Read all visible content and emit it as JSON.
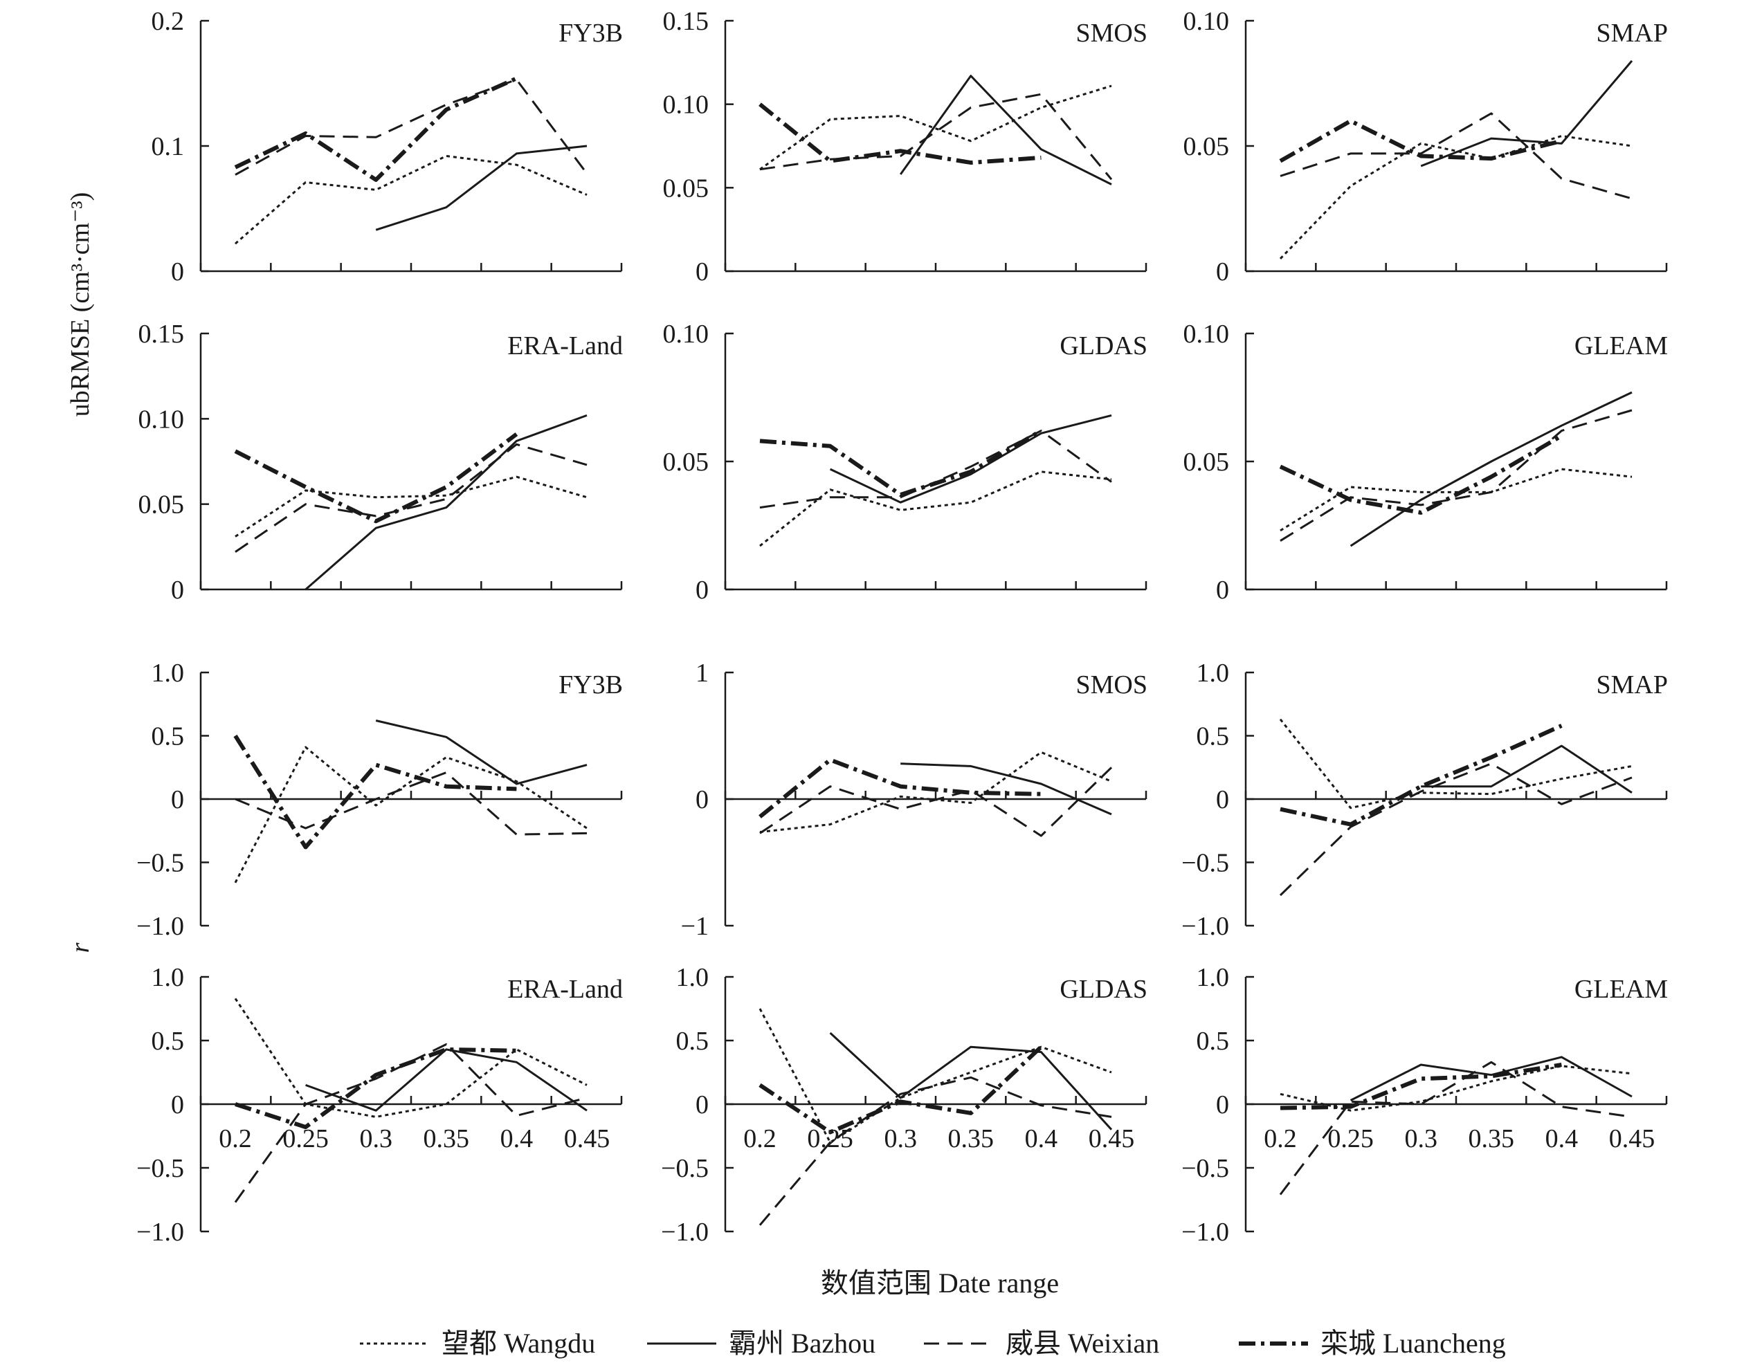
{
  "figure": {
    "ylabel_top": "ubRMSE (cm³·cm⁻³)",
    "ylabel_bottom": "r",
    "xlabel": "数值范围 Date range"
  },
  "legend": [
    {
      "label": "望都 Wangdu",
      "style": "dotted"
    },
    {
      "label": "霸州 Bazhou",
      "style": "solid"
    },
    {
      "label": "威县 Weixian",
      "style": "dashed"
    },
    {
      "label": "栾城 Luancheng",
      "style": "dashdot"
    }
  ],
  "chart_data": [
    {
      "type": "line",
      "title": "FY3B",
      "ylim": [
        0,
        0.2
      ],
      "yticks": [
        "0",
        "0.1",
        "0.2"
      ],
      "x": [
        0.2,
        0.25,
        0.3,
        0.35,
        0.4,
        0.45
      ],
      "xticks": [],
      "series": [
        {
          "name": "望都 Wangdu",
          "values": [
            0.022,
            0.071,
            0.065,
            0.092,
            0.085,
            0.061
          ]
        },
        {
          "name": "霸州 Bazhou",
          "values": [
            null,
            null,
            0.033,
            0.051,
            0.094,
            0.1
          ]
        },
        {
          "name": "威县 Weixian",
          "values": [
            0.077,
            0.108,
            0.107,
            0.133,
            0.153,
            0.078
          ]
        },
        {
          "name": "栾城 Luancheng",
          "values": [
            0.083,
            0.11,
            0.073,
            0.129,
            0.154,
            null
          ]
        }
      ]
    },
    {
      "type": "line",
      "title": "SMOS",
      "ylim": [
        0,
        0.15
      ],
      "yticks": [
        "0",
        "0.05",
        "0.10",
        "0.15"
      ],
      "x": [
        0.2,
        0.25,
        0.3,
        0.35,
        0.4,
        0.45
      ],
      "xticks": [],
      "series": [
        {
          "name": "望都 Wangdu",
          "values": [
            0.061,
            0.091,
            0.093,
            0.078,
            0.098,
            0.111
          ]
        },
        {
          "name": "霸州 Bazhou",
          "values": [
            null,
            null,
            0.058,
            0.117,
            0.073,
            0.052
          ]
        },
        {
          "name": "威县 Weixian",
          "values": [
            0.061,
            0.067,
            0.069,
            0.098,
            0.106,
            0.055
          ]
        },
        {
          "name": "栾城 Luancheng",
          "values": [
            0.1,
            0.066,
            0.072,
            0.065,
            0.068,
            null
          ]
        }
      ]
    },
    {
      "type": "line",
      "title": "SMAP",
      "ylim": [
        0,
        0.1
      ],
      "yticks": [
        "0",
        "0.05",
        "0.10"
      ],
      "x": [
        0.2,
        0.25,
        0.3,
        0.35,
        0.4,
        0.45
      ],
      "xticks": [],
      "series": [
        {
          "name": "望都 Wangdu",
          "values": [
            0.005,
            0.034,
            0.051,
            0.045,
            0.054,
            0.05
          ]
        },
        {
          "name": "霸州 Bazhou",
          "values": [
            null,
            null,
            0.042,
            0.053,
            0.051,
            0.084
          ]
        },
        {
          "name": "威县 Weixian",
          "values": [
            0.038,
            0.047,
            0.047,
            0.063,
            0.037,
            0.029
          ]
        },
        {
          "name": "栾城 Luancheng",
          "values": [
            0.044,
            0.06,
            0.046,
            0.045,
            0.052,
            null
          ]
        }
      ]
    },
    {
      "type": "line",
      "title": "ERA-Land",
      "ylim": [
        0,
        0.15
      ],
      "yticks": [
        "0",
        "0.05",
        "0.10",
        "0.15"
      ],
      "x": [
        0.2,
        0.25,
        0.3,
        0.35,
        0.4,
        0.45
      ],
      "xticks": [],
      "series": [
        {
          "name": "望都 Wangdu",
          "values": [
            0.031,
            0.058,
            0.054,
            0.055,
            0.066,
            0.054
          ]
        },
        {
          "name": "霸州 Bazhou",
          "values": [
            null,
            0.0,
            0.036,
            0.048,
            0.087,
            0.102
          ]
        },
        {
          "name": "威县 Weixian",
          "values": [
            0.022,
            0.05,
            0.043,
            0.053,
            0.085,
            0.073
          ]
        },
        {
          "name": "栾城 Luancheng",
          "values": [
            0.081,
            0.06,
            0.04,
            0.06,
            0.091,
            null
          ]
        }
      ]
    },
    {
      "type": "line",
      "title": "GLDAS",
      "ylim": [
        0,
        0.1
      ],
      "yticks": [
        "0",
        "0.05",
        "0.10"
      ],
      "x": [
        0.2,
        0.25,
        0.3,
        0.35,
        0.4,
        0.45
      ],
      "xticks": [],
      "series": [
        {
          "name": "望都 Wangdu",
          "values": [
            0.017,
            0.039,
            0.031,
            0.034,
            0.046,
            0.043
          ]
        },
        {
          "name": "霸州 Bazhou",
          "values": [
            null,
            0.047,
            0.034,
            0.045,
            0.061,
            0.068
          ]
        },
        {
          "name": "威县 Weixian",
          "values": [
            0.032,
            0.036,
            0.036,
            0.048,
            0.062,
            0.042
          ]
        },
        {
          "name": "栾城 Luancheng",
          "values": [
            0.058,
            0.056,
            0.037,
            0.046,
            0.062,
            null
          ]
        }
      ]
    },
    {
      "type": "line",
      "title": "GLEAM",
      "ylim": [
        0,
        0.1
      ],
      "yticks": [
        "0",
        "0.05",
        "0.10"
      ],
      "x": [
        0.2,
        0.25,
        0.3,
        0.35,
        0.4,
        0.45
      ],
      "xticks": [],
      "series": [
        {
          "name": "望都 Wangdu",
          "values": [
            0.023,
            0.04,
            0.038,
            0.038,
            0.047,
            0.044
          ]
        },
        {
          "name": "霸州 Bazhou",
          "values": [
            null,
            0.017,
            0.035,
            0.05,
            0.064,
            0.077
          ]
        },
        {
          "name": "威县 Weixian",
          "values": [
            0.019,
            0.036,
            0.033,
            0.038,
            0.062,
            0.07
          ]
        },
        {
          "name": "栾城 Luancheng",
          "values": [
            0.048,
            0.035,
            0.03,
            0.044,
            0.06,
            null
          ]
        }
      ]
    },
    {
      "type": "line",
      "title": "FY3B",
      "ylim": [
        -1.0,
        1.0
      ],
      "yticks": [
        "−1.0",
        "−0.5",
        "0",
        "0.5",
        "1.0"
      ],
      "x": [
        0.2,
        0.25,
        0.3,
        0.35,
        0.4,
        0.45
      ],
      "xticks": [],
      "series": [
        {
          "name": "望都 Wangdu",
          "values": [
            -0.66,
            0.41,
            -0.05,
            0.33,
            0.14,
            -0.23
          ]
        },
        {
          "name": "霸州 Bazhou",
          "values": [
            null,
            null,
            0.62,
            0.49,
            0.12,
            0.27
          ]
        },
        {
          "name": "威县 Weixian",
          "values": [
            0.0,
            -0.23,
            0.0,
            0.21,
            -0.28,
            -0.27
          ]
        },
        {
          "name": "栾城 Luancheng",
          "values": [
            0.5,
            -0.38,
            0.27,
            0.1,
            0.08,
            null
          ]
        }
      ]
    },
    {
      "type": "line",
      "title": "SMOS",
      "ylim": [
        -1,
        1
      ],
      "yticks": [
        "−1",
        "0",
        "1"
      ],
      "x": [
        0.2,
        0.25,
        0.3,
        0.35,
        0.4,
        0.45
      ],
      "xticks": [],
      "series": [
        {
          "name": "望都 Wangdu",
          "values": [
            -0.26,
            -0.2,
            0.02,
            -0.03,
            0.37,
            0.14
          ]
        },
        {
          "name": "霸州 Bazhou",
          "values": [
            null,
            null,
            0.28,
            0.26,
            0.12,
            -0.12
          ]
        },
        {
          "name": "威县 Weixian",
          "values": [
            -0.27,
            0.1,
            -0.08,
            0.07,
            -0.29,
            0.25
          ]
        },
        {
          "name": "栾城 Luancheng",
          "values": [
            -0.14,
            0.31,
            0.1,
            0.05,
            0.04,
            null
          ]
        }
      ]
    },
    {
      "type": "line",
      "title": "SMAP",
      "ylim": [
        -1.0,
        1.0
      ],
      "yticks": [
        "−1.0",
        "−0.5",
        "0",
        "0.5",
        "1.0"
      ],
      "x": [
        0.2,
        0.25,
        0.3,
        0.35,
        0.4,
        0.45
      ],
      "xticks": [],
      "series": [
        {
          "name": "望都 Wangdu",
          "values": [
            0.63,
            -0.07,
            0.05,
            0.04,
            0.16,
            0.26
          ]
        },
        {
          "name": "霸州 Bazhou",
          "values": [
            null,
            null,
            0.1,
            0.1,
            0.42,
            0.05
          ]
        },
        {
          "name": "威县 Weixian",
          "values": [
            -0.76,
            -0.22,
            0.06,
            0.28,
            -0.04,
            0.17
          ]
        },
        {
          "name": "栾城 Luancheng",
          "values": [
            -0.08,
            -0.2,
            0.1,
            0.33,
            0.58,
            null
          ]
        }
      ]
    },
    {
      "type": "line",
      "title": "ERA-Land",
      "ylim": [
        -1.0,
        1.0
      ],
      "yticks": [
        "−1.0",
        "−0.5",
        "0",
        "0.5",
        "1.0"
      ],
      "x": [
        0.2,
        0.25,
        0.3,
        0.35,
        0.4,
        0.45
      ],
      "xticks": [
        "0.2",
        "0.25",
        "0.3",
        "0.35",
        "0.4",
        "0.45"
      ],
      "series": [
        {
          "name": "望都 Wangdu",
          "values": [
            0.83,
            0.0,
            -0.1,
            0.0,
            0.43,
            0.15
          ]
        },
        {
          "name": "霸州 Bazhou",
          "values": [
            null,
            0.15,
            -0.05,
            0.43,
            0.33,
            -0.05
          ]
        },
        {
          "name": "威县 Weixian",
          "values": [
            -0.77,
            0.0,
            0.2,
            0.47,
            -0.09,
            0.05
          ]
        },
        {
          "name": "栾城 Luancheng",
          "values": [
            0.0,
            -0.18,
            0.23,
            0.43,
            0.42,
            null
          ]
        }
      ]
    },
    {
      "type": "line",
      "title": "GLDAS",
      "ylim": [
        -1.0,
        1.0
      ],
      "yticks": [
        "−1.0",
        "−0.5",
        "0",
        "0.5",
        "1.0"
      ],
      "x": [
        0.2,
        0.25,
        0.3,
        0.35,
        0.4,
        0.45
      ],
      "xticks": [
        "0.2",
        "0.25",
        "0.3",
        "0.35",
        "0.4",
        "0.45"
      ],
      "series": [
        {
          "name": "望都 Wangdu",
          "values": [
            0.75,
            -0.3,
            0.05,
            0.25,
            0.45,
            0.25
          ]
        },
        {
          "name": "霸州 Bazhou",
          "values": [
            null,
            0.56,
            0.05,
            0.45,
            0.41,
            -0.2
          ]
        },
        {
          "name": "威县 Weixian",
          "values": [
            -0.95,
            -0.3,
            0.08,
            0.21,
            -0.01,
            -0.1
          ]
        },
        {
          "name": "栾城 Luancheng",
          "values": [
            0.15,
            -0.22,
            0.02,
            -0.07,
            0.45,
            null
          ]
        }
      ]
    },
    {
      "type": "line",
      "title": "GLEAM",
      "ylim": [
        -1.0,
        1.0
      ],
      "yticks": [
        "−1.0",
        "−0.5",
        "0",
        "0.5",
        "1.0"
      ],
      "x": [
        0.2,
        0.25,
        0.3,
        0.35,
        0.4,
        0.45
      ],
      "xticks": [
        "0.2",
        "0.25",
        "0.3",
        "0.35",
        "0.4",
        "0.45"
      ],
      "series": [
        {
          "name": "望都 Wangdu",
          "values": [
            0.08,
            -0.05,
            0.02,
            0.18,
            0.3,
            0.24
          ]
        },
        {
          "name": "霸州 Bazhou",
          "values": [
            null,
            0.03,
            0.31,
            0.23,
            0.37,
            0.06
          ]
        },
        {
          "name": "威县 Weixian",
          "values": [
            -0.71,
            0.02,
            0.0,
            0.33,
            -0.02,
            -0.1
          ]
        },
        {
          "name": "栾城 Luancheng",
          "values": [
            -0.03,
            -0.02,
            0.2,
            0.22,
            0.31,
            null
          ]
        }
      ]
    }
  ]
}
